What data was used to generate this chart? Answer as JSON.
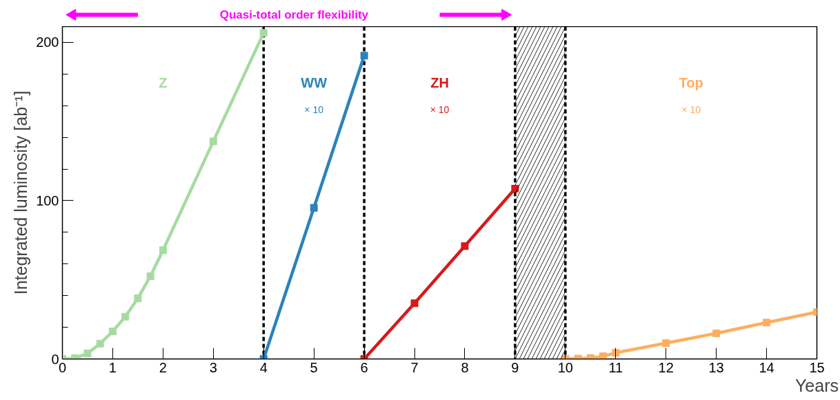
{
  "chart_data": {
    "type": "line",
    "title": "Quasi-total order flexibility",
    "xlabel": "Years",
    "ylabel": "Integrated luminosity [ab⁻¹]",
    "xlim": [
      0,
      15
    ],
    "xticks": [
      0,
      1,
      2,
      3,
      4,
      5,
      6,
      7,
      8,
      9,
      10,
      11,
      12,
      13,
      14,
      15
    ],
    "ylim": [
      0,
      210
    ],
    "yticks": [
      0,
      {
        "value": 20,
        "label": null
      },
      {
        "value": 40,
        "label": null
      },
      {
        "value": 60,
        "label": null
      },
      {
        "value": 80,
        "label": null
      },
      100,
      {
        "value": 120,
        "label": null
      },
      {
        "value": 140,
        "label": null
      },
      {
        "value": 160,
        "label": null
      },
      {
        "value": 180,
        "label": null
      },
      200
    ],
    "grid": false,
    "marker": "square",
    "line_style": "solid",
    "series": [
      {
        "name": "Z",
        "color": "#a6dba0",
        "x": [
          0,
          0.25,
          0.5,
          0.75,
          1,
          1.25,
          1.5,
          1.75,
          2,
          3,
          4
        ],
        "values": [
          0,
          0.5,
          3.5,
          9.7,
          17.4,
          26.7,
          38.3,
          52.3,
          68.7,
          137.5,
          206
        ]
      },
      {
        "name": "WW",
        "color": "#2b83ba",
        "x": [
          4,
          5,
          6
        ],
        "values": [
          0,
          95.5,
          191.6
        ]
      },
      {
        "name": "ZH",
        "color": "#d7191c",
        "x": [
          6,
          7,
          8,
          9
        ],
        "values": [
          0,
          35.2,
          71.3,
          107.6
        ]
      },
      {
        "name": "Top",
        "color": "#fdae61",
        "x": [
          10,
          10.25,
          10.5,
          10.75,
          11,
          12,
          13,
          14,
          15
        ],
        "values": [
          0,
          0.2,
          0.6,
          1.7,
          3.9,
          10,
          16.2,
          23,
          29.6
        ]
      }
    ],
    "annotations": [
      "× 10",
      "× 10",
      "× 10"
    ],
    "ref_lines": [
      {
        "axis": "x",
        "value": 4,
        "color": "#000000",
        "line_style": "dashed"
      },
      {
        "axis": "x",
        "value": 6,
        "color": "#000000",
        "line_style": "dashed"
      },
      {
        "axis": "x",
        "value": 9,
        "color": "#000000",
        "line_style": "dashed"
      },
      {
        "axis": "x",
        "value": 10,
        "color": "#000000",
        "line_style": "dashed"
      }
    ],
    "bands": [
      {
        "axis": "x",
        "from": 9,
        "to": 10,
        "color": "#000000"
      }
    ]
  }
}
